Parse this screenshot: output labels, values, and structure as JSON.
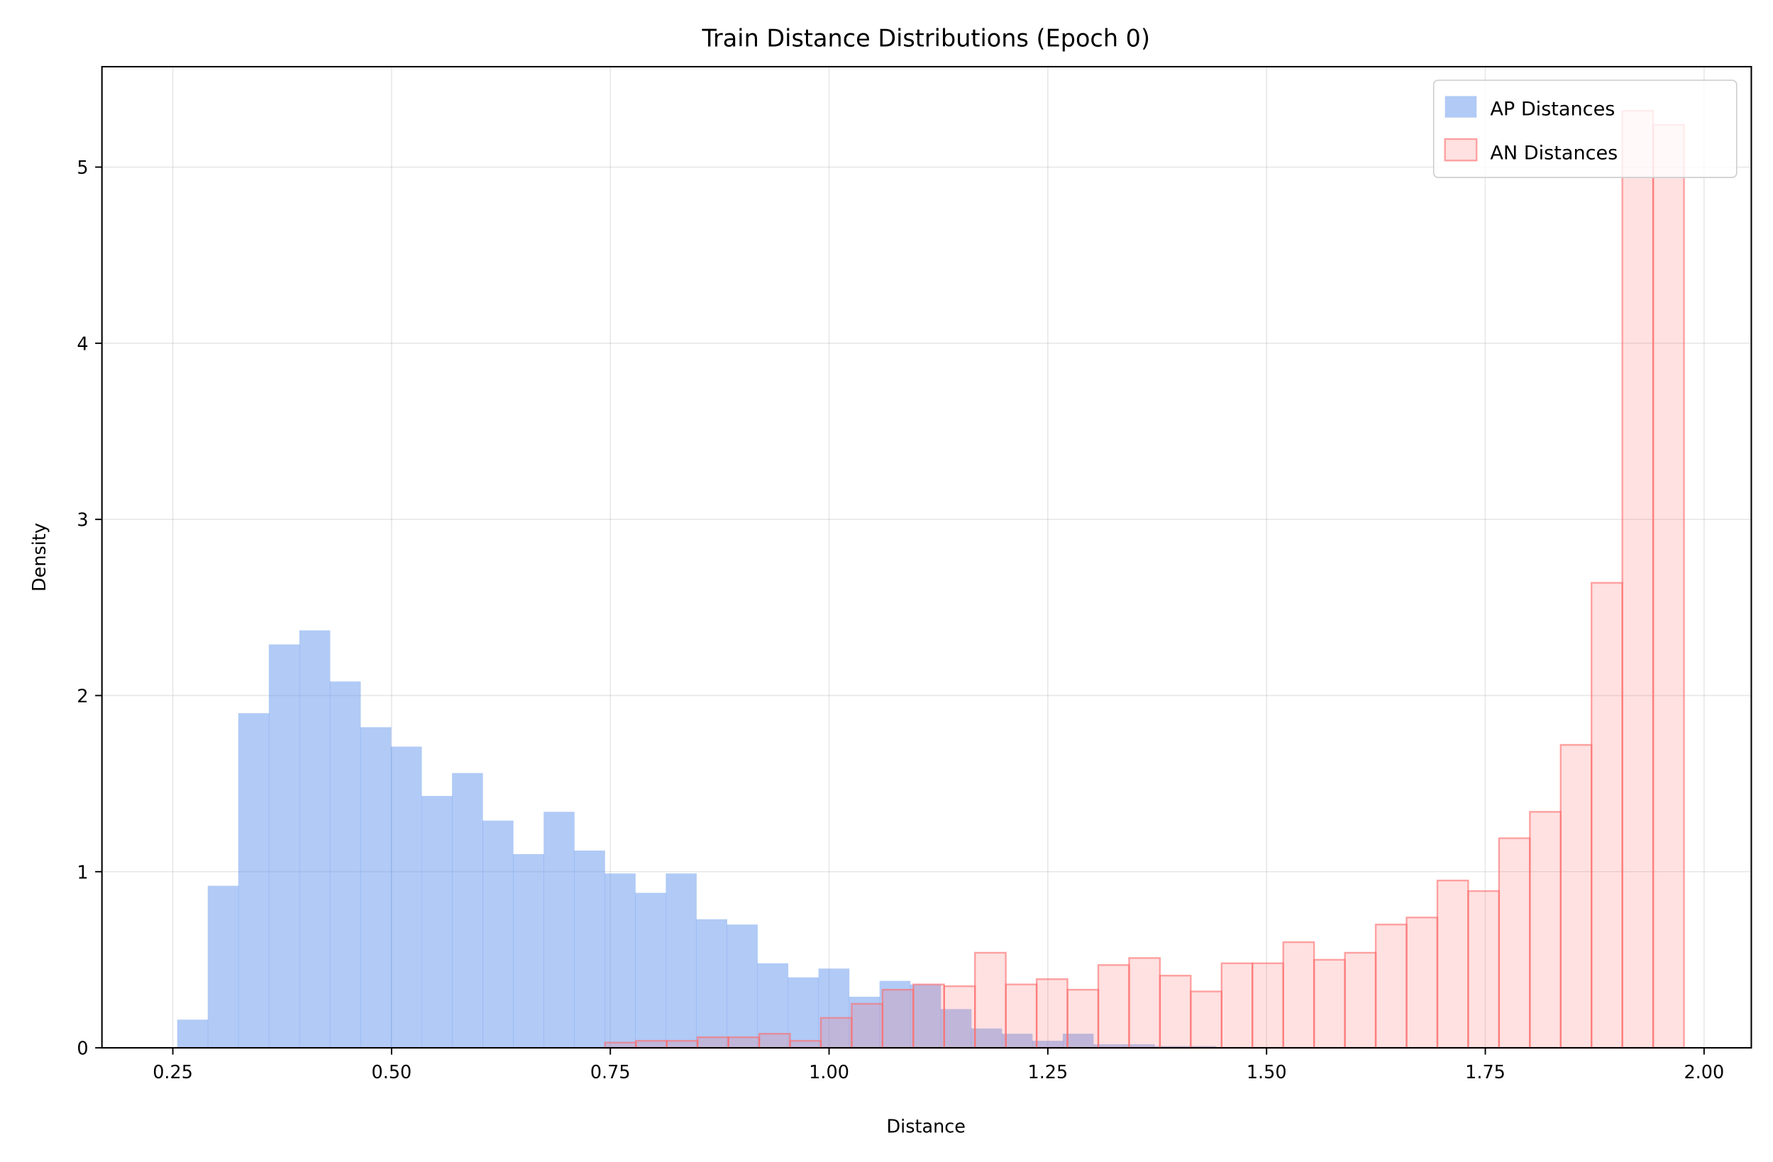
{
  "chart_data": {
    "type": "bar",
    "title": "Train Distance Distributions (Epoch 0)",
    "xlabel": "Distance",
    "ylabel": "Density",
    "xlim": [
      0.169,
      2.054
    ],
    "ylim": [
      0,
      5.57
    ],
    "grid": true,
    "legend_position": "top-right",
    "xticks": [
      "0.25",
      "0.50",
      "0.75",
      "1.00",
      "1.25",
      "1.50",
      "1.75",
      "2.00"
    ],
    "xtick_values": [
      0.25,
      0.5,
      0.75,
      1.0,
      1.25,
      1.5,
      1.75,
      2.0
    ],
    "yticks": [
      "0",
      "1",
      "2",
      "3",
      "4",
      "5"
    ],
    "ytick_values": [
      0,
      1,
      2,
      3,
      4,
      5
    ],
    "series": [
      {
        "name": "AP Distances",
        "color": "#6495ED",
        "bin_start": 0.255,
        "bin_width": 0.0349,
        "values": [
          0.16,
          0.92,
          1.9,
          2.29,
          2.37,
          2.08,
          1.82,
          1.71,
          1.43,
          1.56,
          1.29,
          1.1,
          1.34,
          1.12,
          0.99,
          0.88,
          0.99,
          0.73,
          0.7,
          0.48,
          0.4,
          0.45,
          0.29,
          0.38,
          0.36,
          0.22,
          0.11,
          0.08,
          0.04,
          0.08,
          0.02,
          0.02,
          0.01,
          0.01
        ]
      },
      {
        "name": "AN Distances",
        "color": "#FF6B6B",
        "bin_start": 0.744,
        "bin_width": 0.03523,
        "values": [
          0.03,
          0.04,
          0.04,
          0.06,
          0.06,
          0.08,
          0.04,
          0.17,
          0.25,
          0.33,
          0.36,
          0.35,
          0.54,
          0.36,
          0.39,
          0.33,
          0.47,
          0.51,
          0.41,
          0.32,
          0.48,
          0.48,
          0.6,
          0.5,
          0.54,
          0.7,
          0.74,
          0.95,
          0.89,
          1.19,
          1.34,
          1.72,
          2.64,
          5.32,
          5.24
        ]
      }
    ]
  }
}
